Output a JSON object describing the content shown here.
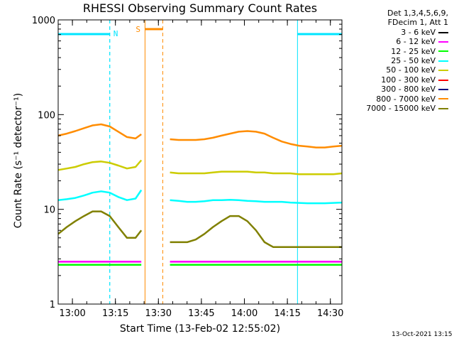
{
  "chart_data": {
    "type": "line",
    "title": "RHESSI Observing Summary Count Rates",
    "xlabel": "Start Time (13-Feb-02 12:55:02)",
    "ylabel": "Count Rate (s⁻¹ detector⁻¹)",
    "yscale": "log",
    "ylim": [
      1,
      1000
    ],
    "xlim_minutes": [
      0,
      99
    ],
    "x_tick_labels": [
      "13:00",
      "13:15",
      "13:30",
      "13:45",
      "14:00",
      "14:15",
      "14:30"
    ],
    "x_tick_minutes": [
      4.97,
      19.97,
      34.97,
      49.97,
      64.97,
      79.97,
      94.97
    ],
    "y_tick_labels": [
      "1",
      "10",
      "100",
      "1000"
    ],
    "y_tick_values": [
      1,
      10,
      100,
      1000
    ],
    "legend_header": [
      "Det 1,3,4,5,6,9,",
      "FDecim 1, Att 1"
    ],
    "annotations": {
      "night_marker": "N",
      "saa_marker": "S",
      "night_color": "#00e5ff",
      "saa_color": "#ff8c00",
      "night_periods_minutes": [
        [
          0,
          18
        ],
        [
          83.5,
          99
        ]
      ],
      "saa_period_minutes": [
        [
          30.3,
          36.5
        ]
      ]
    },
    "x": [
      0,
      3,
      6,
      9,
      12,
      15,
      18,
      21,
      24,
      27,
      29,
      31,
      33,
      37,
      39,
      42,
      45,
      48,
      51,
      54,
      57,
      60,
      63,
      66,
      69,
      72,
      75,
      78,
      81,
      84,
      87,
      90,
      93,
      96,
      99
    ],
    "series": [
      {
        "name": "3 - 6 keV",
        "color": "#000000",
        "values": [
          null,
          null,
          null,
          null,
          null,
          null,
          null,
          null,
          null,
          null,
          null,
          null,
          null,
          null,
          null,
          null,
          null,
          null,
          null,
          null,
          null,
          null,
          null,
          null,
          null,
          null,
          null,
          null,
          null,
          null,
          null,
          null,
          null,
          null,
          null
        ]
      },
      {
        "name": "6 - 12 keV",
        "color": "#ff00ff",
        "values": [
          2.8,
          2.8,
          2.8,
          2.8,
          2.8,
          2.8,
          2.8,
          2.8,
          2.8,
          2.8,
          2.8,
          null,
          null,
          null,
          2.8,
          2.8,
          2.8,
          2.8,
          2.8,
          2.8,
          2.8,
          2.8,
          2.8,
          2.8,
          2.8,
          2.8,
          2.8,
          2.8,
          2.8,
          2.8,
          2.8,
          2.8,
          2.8,
          2.8,
          2.8
        ]
      },
      {
        "name": "12 - 25 keV",
        "color": "#00ff00",
        "values": [
          2.6,
          2.6,
          2.6,
          2.6,
          2.6,
          2.6,
          2.6,
          2.6,
          2.6,
          2.6,
          2.6,
          null,
          null,
          null,
          2.6,
          2.6,
          2.6,
          2.6,
          2.6,
          2.6,
          2.6,
          2.6,
          2.6,
          2.6,
          2.6,
          2.6,
          2.6,
          2.6,
          2.6,
          2.6,
          2.6,
          2.6,
          2.6,
          2.6,
          2.6
        ]
      },
      {
        "name": "25 - 50 keV",
        "color": "#00ffff",
        "values": [
          12.5,
          12.8,
          13.2,
          14,
          15,
          15.5,
          15,
          13.5,
          12.5,
          13,
          16,
          null,
          null,
          null,
          12.5,
          12.3,
          12,
          12,
          12.2,
          12.5,
          12.5,
          12.6,
          12.5,
          12.3,
          12.2,
          12,
          12,
          12,
          11.8,
          11.7,
          11.6,
          11.6,
          11.6,
          11.7,
          11.8
        ]
      },
      {
        "name": "50 - 100 keV",
        "color": "#cccc00",
        "values": [
          26,
          27,
          28,
          30,
          31.5,
          32,
          31,
          29,
          27,
          28,
          33,
          null,
          null,
          null,
          24.5,
          24,
          24,
          24,
          24,
          24.5,
          25,
          25,
          25,
          25,
          24.5,
          24.5,
          24,
          24,
          24,
          23.5,
          23.5,
          23.5,
          23.5,
          23.5,
          24
        ]
      },
      {
        "name": "100 - 300 keV",
        "color": "#ff0000",
        "values": [
          null,
          null,
          null,
          null,
          null,
          null,
          null,
          null,
          null,
          null,
          null,
          null,
          null,
          null,
          null,
          null,
          null,
          null,
          null,
          null,
          null,
          null,
          null,
          null,
          null,
          null,
          null,
          null,
          null,
          null,
          null,
          null,
          null,
          null,
          null
        ]
      },
      {
        "name": "300 - 800 keV",
        "color": "#000080",
        "values": [
          null,
          null,
          null,
          null,
          null,
          null,
          null,
          null,
          null,
          null,
          null,
          null,
          null,
          null,
          null,
          null,
          null,
          null,
          null,
          null,
          null,
          null,
          null,
          null,
          null,
          null,
          null,
          null,
          null,
          null,
          null,
          null,
          null,
          null,
          null
        ]
      },
      {
        "name": "800 - 7000 keV",
        "color": "#ff8c00",
        "values": [
          60,
          63,
          67,
          72,
          77,
          79,
          75,
          66,
          58,
          56,
          62,
          null,
          null,
          null,
          55,
          54,
          54,
          54,
          55,
          57,
          60,
          63,
          66,
          67,
          66,
          63,
          57,
          52,
          49,
          47,
          46,
          45,
          45,
          46,
          47
        ]
      },
      {
        "name": "7000 - 15000 keV",
        "color": "#808000",
        "values": [
          5.5,
          6.5,
          7.5,
          8.5,
          9.5,
          9.5,
          8.5,
          6.5,
          5,
          5,
          6,
          null,
          null,
          null,
          4.5,
          4.5,
          4.5,
          4.8,
          5.5,
          6.5,
          7.5,
          8.5,
          8.5,
          7.5,
          6,
          4.5,
          4,
          4,
          4,
          4,
          4,
          4,
          4,
          4,
          4
        ]
      }
    ]
  },
  "footer_stamp": "13-Oct-2021 13:15"
}
